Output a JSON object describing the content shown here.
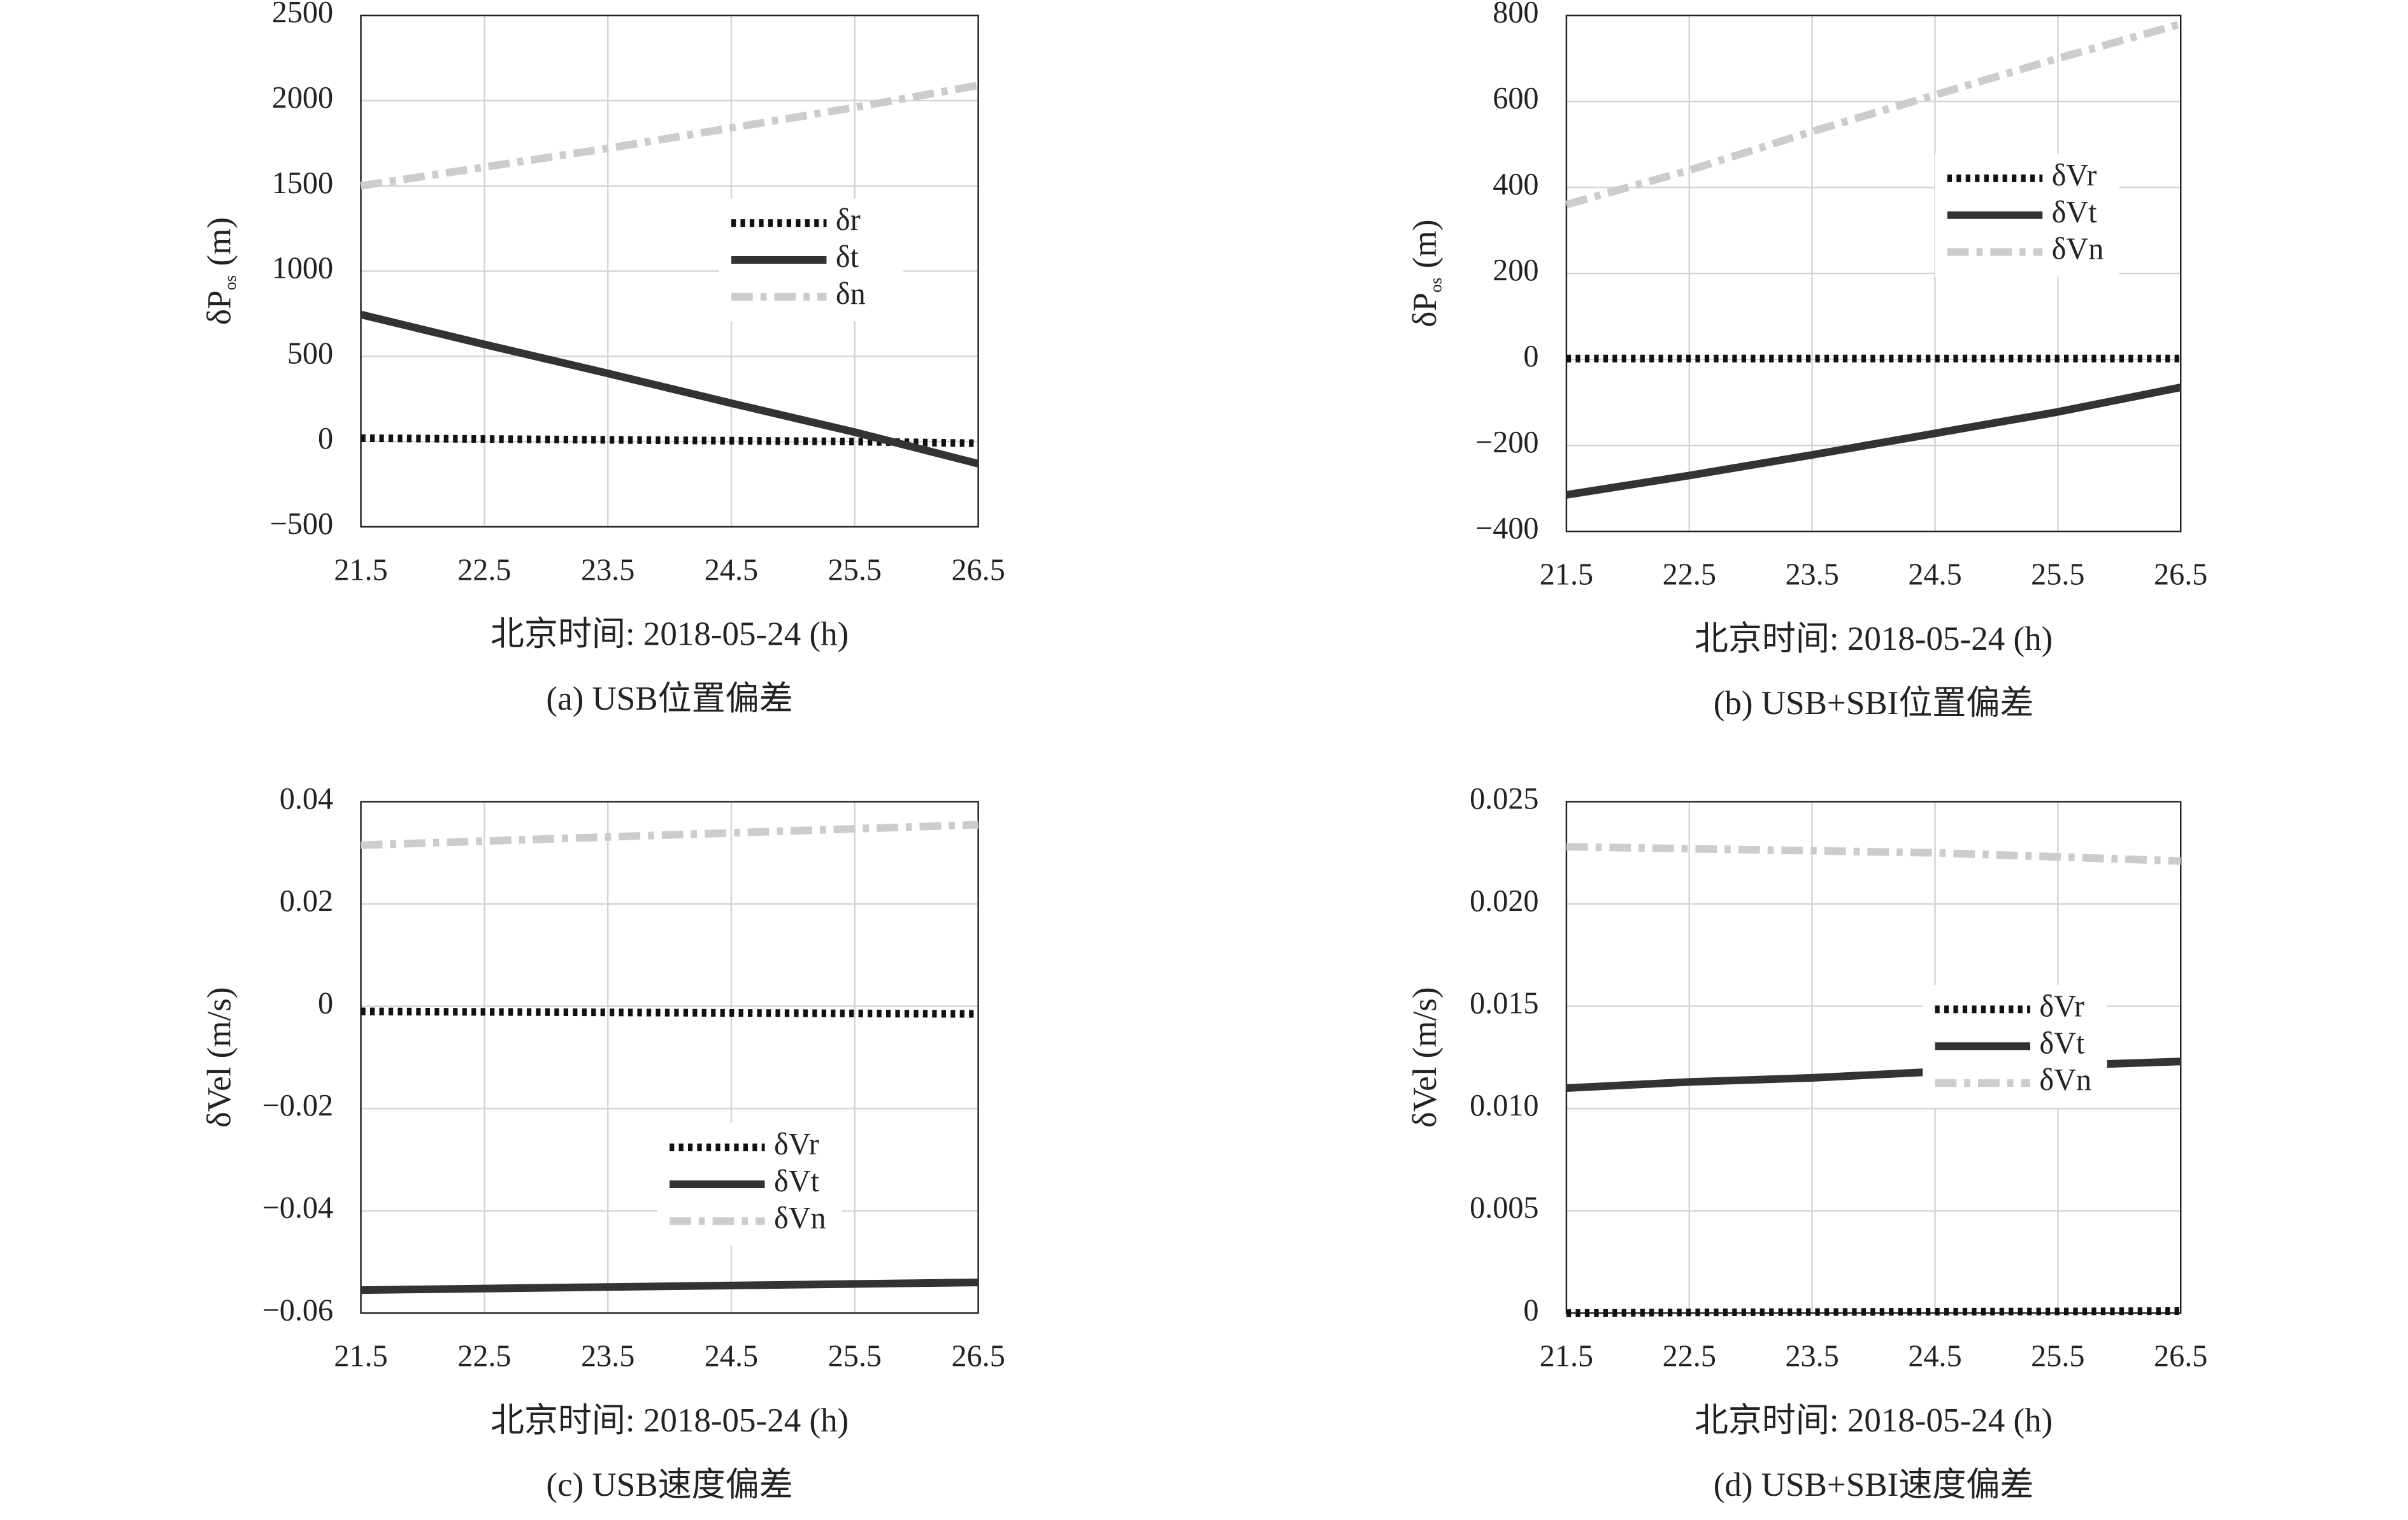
{
  "chart_data": [
    {
      "type": "line",
      "caption": "(a) USB位置偏差",
      "xlabel": "北京时间: 2018-05-24 (h)",
      "ylabel": {
        "main": "δP",
        "sub": "os",
        "unit": "(m)"
      },
      "x": [
        21.5,
        22.5,
        23.5,
        24.5,
        25.5,
        26.5
      ],
      "xlim": [
        21.5,
        26.5
      ],
      "xticks": [
        21.5,
        22.5,
        23.5,
        24.5,
        25.5,
        26.5
      ],
      "ylim": [
        -500,
        2500
      ],
      "yticks": [
        {
          "value": -500,
          "label": "−500"
        },
        0,
        500,
        1000,
        1500,
        2000,
        2500
      ],
      "grid": true,
      "legend": "center right",
      "series": [
        {
          "name": "δr",
          "color": "#111111",
          "dash": "dotted",
          "values": [
            20,
            15,
            10,
            5,
            0,
            -10
          ]
        },
        {
          "name": "δt",
          "color": "#333333",
          "dash": "solid",
          "values": [
            745,
            570,
            400,
            225,
            55,
            -130
          ]
        },
        {
          "name": "δn",
          "color": "#cccccc",
          "dash": "dashdot",
          "values": [
            1500,
            1610,
            1720,
            1840,
            1960,
            2090
          ]
        }
      ]
    },
    {
      "type": "line",
      "caption": "(b) USB+SBI位置偏差",
      "xlabel": "北京时间: 2018-05-24 (h)",
      "ylabel": {
        "main": "δP",
        "sub": "os",
        "unit": "(m)"
      },
      "x": [
        21.5,
        22.5,
        23.5,
        24.5,
        25.5,
        26.5
      ],
      "xlim": [
        21.5,
        26.5
      ],
      "xticks": [
        21.5,
        22.5,
        23.5,
        24.5,
        25.5,
        26.5
      ],
      "ylim": [
        -400,
        800
      ],
      "yticks": [
        {
          "value": -400,
          "label": "−400"
        },
        {
          "value": -200,
          "label": "−200"
        },
        0,
        200,
        400,
        600,
        800
      ],
      "grid": true,
      "legend": "upper right",
      "series": [
        {
          "name": "δVr",
          "color": "#111111",
          "dash": "dotted",
          "values": [
            2,
            2,
            2,
            2,
            2,
            2
          ]
        },
        {
          "name": "δVt",
          "color": "#333333",
          "dash": "solid",
          "values": [
            -315,
            -270,
            -222,
            -172,
            -122,
            -65
          ]
        },
        {
          "name": "δVn",
          "color": "#cccccc",
          "dash": "dashdot",
          "values": [
            360,
            440,
            530,
            615,
            700,
            780
          ]
        }
      ]
    },
    {
      "type": "line",
      "caption": "(c) USB速度偏差",
      "xlabel": "北京时间: 2018-05-24 (h)",
      "ylabel": "δVel (m/s)",
      "x": [
        21.5,
        22.5,
        23.5,
        24.5,
        25.5,
        26.5
      ],
      "xlim": [
        21.5,
        26.5
      ],
      "xticks": [
        21.5,
        22.5,
        23.5,
        24.5,
        25.5,
        26.5
      ],
      "ylim": [
        -0.06,
        0.04
      ],
      "yticks": [
        {
          "value": -0.06,
          "label": "−0.06"
        },
        {
          "value": -0.04,
          "label": "−0.04"
        },
        {
          "value": -0.02,
          "label": "−0.02"
        },
        0,
        0.02,
        0.04
      ],
      "grid": true,
      "legend": "lower center",
      "series": [
        {
          "name": "δVr",
          "color": "#111111",
          "dash": "dotted",
          "values": [
            -0.001,
            -0.0011,
            -0.0012,
            -0.0013,
            -0.0014,
            -0.0015
          ]
        },
        {
          "name": "δVt",
          "color": "#333333",
          "dash": "solid",
          "values": [
            -0.0555,
            -0.0552,
            -0.0549,
            -0.0546,
            -0.0543,
            -0.054
          ]
        },
        {
          "name": "δVn",
          "color": "#cccccc",
          "dash": "dashdot",
          "values": [
            0.0315,
            0.0323,
            0.0331,
            0.0339,
            0.0347,
            0.0355
          ]
        }
      ]
    },
    {
      "type": "line",
      "caption": "(d) USB+SBI速度偏差",
      "xlabel": "北京时间: 2018-05-24 (h)",
      "ylabel": "δVel (m/s)",
      "x": [
        21.5,
        22.5,
        23.5,
        24.5,
        25.5,
        26.5
      ],
      "xlim": [
        21.5,
        26.5
      ],
      "xticks": [
        21.5,
        22.5,
        23.5,
        24.5,
        25.5,
        26.5
      ],
      "ylim": [
        0,
        0.025
      ],
      "yticks": [
        0,
        0.005,
        {
          "value": 0.01,
          "label": "0.010"
        },
        0.015,
        {
          "value": 0.02,
          "label": "0.020"
        },
        0.025
      ],
      "grid": true,
      "legend": "center right",
      "series": [
        {
          "name": "δVr",
          "color": "#111111",
          "dash": "dotted",
          "values": [
            0,
            3e-05,
            5e-05,
            7e-05,
            8e-05,
            0.0001
          ]
        },
        {
          "name": "δVt",
          "color": "#333333",
          "dash": "solid",
          "values": [
            0.011,
            0.0113,
            0.0115,
            0.0118,
            0.0121,
            0.0123
          ]
        },
        {
          "name": "δVn",
          "color": "#cccccc",
          "dash": "dashdot",
          "values": [
            0.0228,
            0.0227,
            0.0226,
            0.0225,
            0.0223,
            0.0221
          ]
        }
      ]
    }
  ]
}
